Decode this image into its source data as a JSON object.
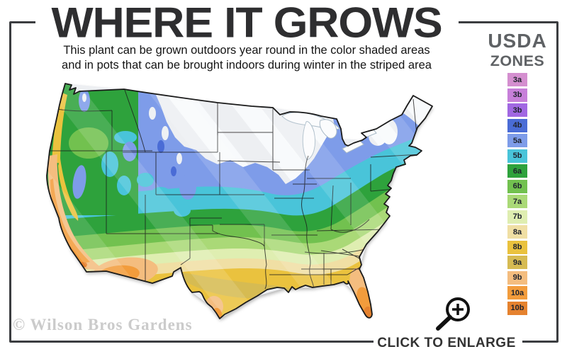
{
  "header": {
    "title": "WHERE IT GROWS",
    "subtitle_line1": "This plant can be grown outdoors year round in the color shaded areas",
    "subtitle_line2": "and in pots that can be brought indoors during winter in the striped area"
  },
  "legend": {
    "title_line1": "USDA",
    "title_line2": "ZONES",
    "zones": [
      {
        "label": "3a",
        "color": "#d48fcf"
      },
      {
        "label": "3b",
        "color": "#c77fd9"
      },
      {
        "label": "3b",
        "color": "#a168e2"
      },
      {
        "label": "4b",
        "color": "#4a6cd6"
      },
      {
        "label": "5a",
        "color": "#7e9ce9"
      },
      {
        "label": "5b",
        "color": "#49c4d9"
      },
      {
        "label": "6a",
        "color": "#2ea23c"
      },
      {
        "label": "6b",
        "color": "#72c14f"
      },
      {
        "label": "7a",
        "color": "#aad977"
      },
      {
        "label": "7b",
        "color": "#dfeeb1"
      },
      {
        "label": "8a",
        "color": "#f0dfa4"
      },
      {
        "label": "8b",
        "color": "#eac23e"
      },
      {
        "label": "9a",
        "color": "#d6bb52"
      },
      {
        "label": "9b",
        "color": "#f4bd7f"
      },
      {
        "label": "10a",
        "color": "#f29c3c"
      },
      {
        "label": "10b",
        "color": "#e5822f"
      }
    ]
  },
  "map": {
    "description": "USDA hardiness zone map of the continental United States"
  },
  "watermark": "© Wilson Bros Gardens",
  "footer": {
    "enlarge_label": "CLICK TO ENLARGE"
  },
  "colors": {
    "frame": "#3b3d40",
    "title_text": "#2e2e30",
    "legend_title_text": "#5f6265",
    "watermark_text": "#cbcbcb",
    "striped_area_base": "#edeff2"
  }
}
